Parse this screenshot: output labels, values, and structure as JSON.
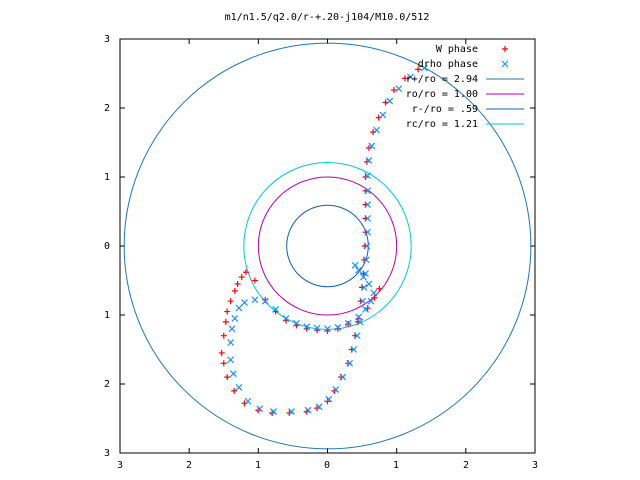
{
  "chart_data": {
    "type": "scatter",
    "title": "m1/n1.5/q2.0/r-+.20-j104/M10.0/512",
    "xlim": [
      -3,
      3
    ],
    "ylim": [
      -3,
      3
    ],
    "x_ticks": [
      "3",
      "2",
      "1",
      "0",
      "1",
      "2",
      "3"
    ],
    "y_ticks": [
      "3",
      "2",
      "1",
      "0",
      "1",
      "2",
      "3"
    ],
    "grid": false,
    "legend_position": "top-right",
    "series": [
      {
        "name": "W phase",
        "marker": "+",
        "color": "#ff0000",
        "points": [
          [
            1.31,
            2.56
          ],
          [
            1.12,
            2.43
          ],
          [
            0.96,
            2.26
          ],
          [
            0.84,
            2.08
          ],
          [
            0.74,
            1.86
          ],
          [
            0.66,
            1.65
          ],
          [
            0.6,
            1.42
          ],
          [
            0.57,
            1.22
          ],
          [
            0.55,
            1.0
          ],
          [
            0.55,
            0.8
          ],
          [
            0.55,
            0.6
          ],
          [
            0.55,
            0.4
          ],
          [
            0.55,
            0.2
          ],
          [
            0.54,
            0.0
          ],
          [
            0.53,
            -0.2
          ],
          [
            0.52,
            -0.4
          ],
          [
            0.5,
            -0.6
          ],
          [
            0.48,
            -0.8
          ],
          [
            0.44,
            -1.1
          ],
          [
            0.4,
            -1.3
          ],
          [
            0.35,
            -1.5
          ],
          [
            0.3,
            -1.7
          ],
          [
            0.2,
            -1.9
          ],
          [
            0.1,
            -2.1
          ],
          [
            0.0,
            -2.25
          ],
          [
            -0.15,
            -2.35
          ],
          [
            -0.3,
            -2.4
          ],
          [
            -0.55,
            -2.42
          ],
          [
            -0.8,
            -2.42
          ],
          [
            -1.0,
            -2.38
          ],
          [
            -1.2,
            -2.28
          ],
          [
            -1.35,
            -2.1
          ],
          [
            -1.45,
            -1.9
          ],
          [
            -1.5,
            -1.7
          ],
          [
            -1.53,
            -1.55
          ],
          [
            -1.5,
            -1.3
          ],
          [
            -1.47,
            -1.1
          ],
          [
            -1.45,
            -0.95
          ],
          [
            -1.4,
            -0.8
          ],
          [
            -1.34,
            -0.65
          ],
          [
            -1.3,
            -0.55
          ],
          [
            -1.24,
            -0.45
          ],
          [
            -1.18,
            -0.38
          ],
          [
            -1.05,
            -0.5
          ],
          [
            -0.9,
            -0.78
          ],
          [
            -0.75,
            -0.95
          ],
          [
            -0.6,
            -1.08
          ],
          [
            -0.45,
            -1.15
          ],
          [
            -0.3,
            -1.2
          ],
          [
            -0.15,
            -1.22
          ],
          [
            0.0,
            -1.23
          ],
          [
            0.15,
            -1.2
          ],
          [
            0.3,
            -1.13
          ],
          [
            0.45,
            -1.05
          ],
          [
            0.58,
            -0.9
          ],
          [
            0.68,
            -0.75
          ],
          [
            0.75,
            -0.62
          ]
        ]
      },
      {
        "name": "drho phase",
        "marker": "x",
        "color": "#1e90ff",
        "points": [
          [
            1.4,
            2.58
          ],
          [
            1.2,
            2.45
          ],
          [
            1.03,
            2.28
          ],
          [
            0.9,
            2.1
          ],
          [
            0.8,
            1.9
          ],
          [
            0.71,
            1.68
          ],
          [
            0.64,
            1.45
          ],
          [
            0.6,
            1.24
          ],
          [
            0.58,
            1.02
          ],
          [
            0.58,
            0.8
          ],
          [
            0.58,
            0.6
          ],
          [
            0.58,
            0.4
          ],
          [
            0.58,
            0.2
          ],
          [
            0.57,
            0.0
          ],
          [
            0.56,
            -0.2
          ],
          [
            0.55,
            -0.4
          ],
          [
            0.53,
            -0.6
          ],
          [
            0.51,
            -0.8
          ],
          [
            0.47,
            -1.1
          ],
          [
            0.43,
            -1.3
          ],
          [
            0.38,
            -1.5
          ],
          [
            0.32,
            -1.7
          ],
          [
            0.22,
            -1.9
          ],
          [
            0.12,
            -2.08
          ],
          [
            0.02,
            -2.22
          ],
          [
            -0.12,
            -2.33
          ],
          [
            -0.28,
            -2.38
          ],
          [
            -0.52,
            -2.4
          ],
          [
            -0.78,
            -2.4
          ],
          [
            -0.98,
            -2.36
          ],
          [
            -1.15,
            -2.25
          ],
          [
            -1.28,
            -2.05
          ],
          [
            -1.36,
            -1.85
          ],
          [
            -1.4,
            -1.65
          ],
          [
            -1.4,
            -1.4
          ],
          [
            -1.38,
            -1.2
          ],
          [
            -1.34,
            -1.05
          ],
          [
            -1.28,
            -0.9
          ],
          [
            -1.2,
            -0.82
          ],
          [
            -1.05,
            -0.78
          ],
          [
            -0.9,
            -0.8
          ],
          [
            -0.75,
            -0.92
          ],
          [
            -0.6,
            -1.05
          ],
          [
            -0.45,
            -1.12
          ],
          [
            -0.3,
            -1.17
          ],
          [
            -0.15,
            -1.19
          ],
          [
            0.0,
            -1.2
          ],
          [
            0.15,
            -1.18
          ],
          [
            0.3,
            -1.12
          ],
          [
            0.45,
            -1.03
          ],
          [
            0.55,
            -0.92
          ],
          [
            0.63,
            -0.8
          ],
          [
            0.67,
            -0.68
          ],
          [
            0.6,
            -0.55
          ],
          [
            0.52,
            -0.45
          ],
          [
            0.45,
            -0.35
          ],
          [
            0.4,
            -0.28
          ]
        ]
      }
    ],
    "circles": [
      {
        "name": "r+/ro = 2.94",
        "radius": 2.94,
        "color": "#1f77b4"
      },
      {
        "name": "ro/ro = 1.00",
        "radius": 1.0,
        "color": "#b000b0"
      },
      {
        "name": "r-/ro = .59",
        "radius": 0.59,
        "color": "#1060b0"
      },
      {
        "name": "rc/ro = 1.21",
        "radius": 1.21,
        "color": "#00c8d8"
      }
    ]
  }
}
